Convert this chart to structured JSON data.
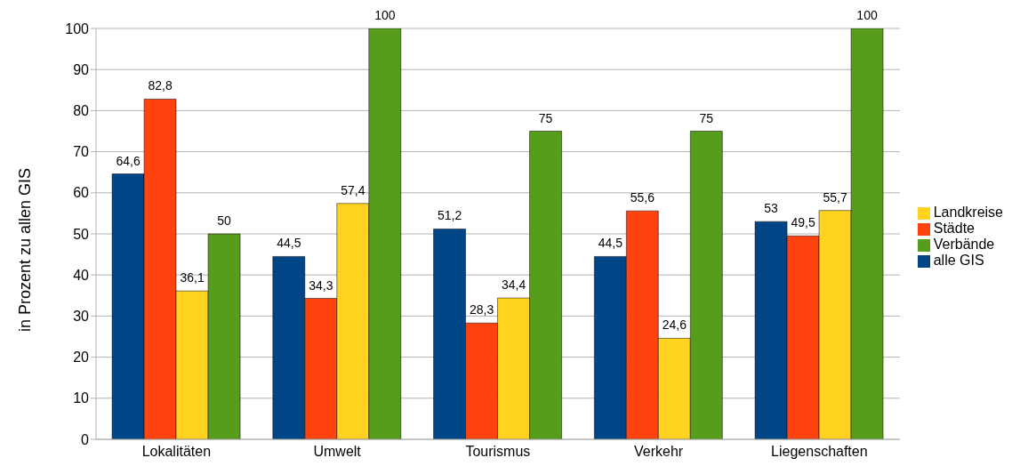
{
  "chart_data": {
    "type": "bar",
    "ylabel": "in Prozent zu allen GIS",
    "categories": [
      "Lokalitäten",
      "Umwelt",
      "Tourismus",
      "Verkehr",
      "Liegenschaften"
    ],
    "series": [
      {
        "name": "alle GIS",
        "color": "#004586",
        "values": [
          64.6,
          44.5,
          51.2,
          44.5,
          53
        ],
        "value_labels": [
          "64,6",
          "44,5",
          "51,2",
          "44,5",
          "53"
        ]
      },
      {
        "name": "Städte",
        "color": "#ff420e",
        "values": [
          82.8,
          34.3,
          28.3,
          55.6,
          49.5
        ],
        "value_labels": [
          "82,8",
          "34,3",
          "28,3",
          "55,6",
          "49,5"
        ]
      },
      {
        "name": "Landkreise",
        "color": "#ffd320",
        "values": [
          36.1,
          57.4,
          34.4,
          24.6,
          55.7
        ],
        "value_labels": [
          "36,1",
          "57,4",
          "34,4",
          "24,6",
          "55,7"
        ]
      },
      {
        "name": "Verbände",
        "color": "#579d1c",
        "values": [
          50,
          100,
          75,
          75,
          100
        ],
        "value_labels": [
          "50",
          "100",
          "75",
          "75",
          "100"
        ]
      }
    ],
    "ylim": [
      0,
      100
    ],
    "yticks": [
      0,
      10,
      20,
      30,
      40,
      50,
      60,
      70,
      80,
      90,
      100
    ],
    "grid": "y",
    "legend": "right"
  }
}
